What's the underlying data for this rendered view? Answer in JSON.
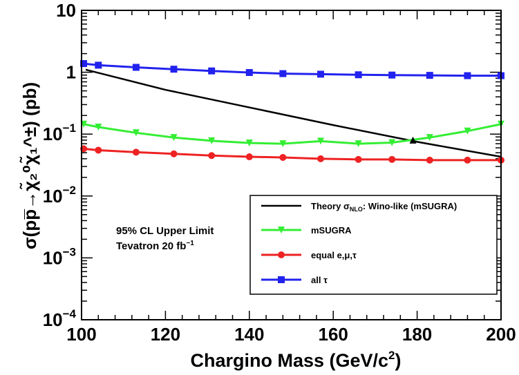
{
  "chart_data": {
    "type": "line",
    "xlabel_main": "Chargino Mass (GeV/c",
    "xlabel_sup": "2",
    "xlabel_end": ")",
    "ylabel": "σ(pp̅→χ̃₂⁰χ̃₁^±) (pb)",
    "xlim": [
      100,
      200
    ],
    "ylim": [
      0.0001,
      10
    ],
    "yscale": "log",
    "x_ticks": [
      "100",
      "120",
      "140",
      "160",
      "180",
      "200"
    ],
    "y_ticks": [
      {
        "value": 10,
        "base": "10",
        "exp": ""
      },
      {
        "value": 1,
        "base": "1",
        "exp": ""
      },
      {
        "value": 0.1,
        "base": "10",
        "exp": "−1"
      },
      {
        "value": 0.01,
        "base": "10",
        "exp": "−2"
      },
      {
        "value": 0.001,
        "base": "10",
        "exp": "−3"
      },
      {
        "value": 0.0001,
        "base": "10",
        "exp": "−4"
      }
    ],
    "annotation": {
      "line1": "95% CL Upper Limit",
      "line2_main": "Tevatron 20 fb",
      "line2_sup": "−1"
    },
    "intersection_marker": {
      "x": 179,
      "y": 0.08,
      "color": "#000000"
    },
    "theory": {
      "label_prefix": "Theory σ",
      "label_sub": "NLO",
      "label_suffix": ": Wino-like (mSUGRA)",
      "color": "#000000",
      "x": [
        101,
        120,
        140,
        160,
        180,
        200
      ],
      "y": [
        1.1,
        0.52,
        0.27,
        0.14,
        0.075,
        0.043
      ]
    },
    "series": [
      {
        "name": "mSUGRA",
        "color": "#33ee33",
        "marker": "triangle-down",
        "x": [
          100.5,
          104,
          113,
          122,
          131,
          140,
          148,
          157,
          166,
          174,
          183,
          192,
          200
        ],
        "y": [
          0.145,
          0.13,
          0.105,
          0.088,
          0.078,
          0.072,
          0.07,
          0.077,
          0.07,
          0.073,
          0.088,
          0.112,
          0.145
        ]
      },
      {
        "name": "equal e,μ,τ",
        "color": "#ee2222",
        "marker": "circle",
        "x": [
          100.5,
          104,
          113,
          122,
          131,
          140,
          148,
          157,
          166,
          174,
          183,
          192,
          200
        ],
        "y": [
          0.058,
          0.055,
          0.051,
          0.048,
          0.045,
          0.043,
          0.042,
          0.04,
          0.039,
          0.039,
          0.038,
          0.038,
          0.038
        ]
      },
      {
        "name": "all τ",
        "color": "#2222ee",
        "marker": "square",
        "x": [
          100.5,
          104,
          113,
          122,
          131,
          140,
          148,
          157,
          166,
          174,
          183,
          192,
          200
        ],
        "y": [
          1.38,
          1.3,
          1.2,
          1.12,
          1.05,
          0.99,
          0.95,
          0.93,
          0.91,
          0.9,
          0.89,
          0.88,
          0.88
        ]
      }
    ]
  }
}
